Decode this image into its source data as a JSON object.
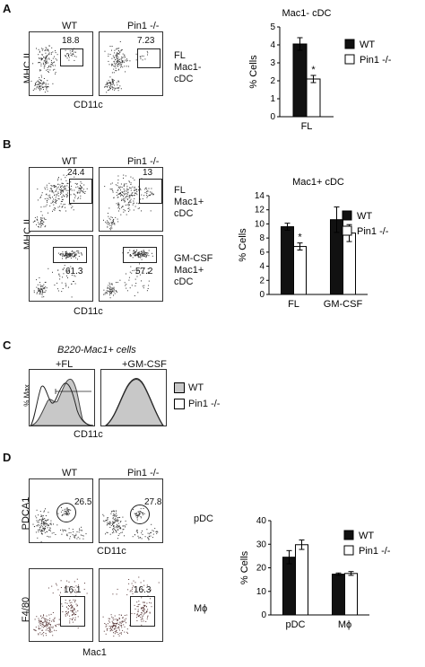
{
  "panels": {
    "A": {
      "letter": "A",
      "wt": "WT",
      "ko": "Pin1 -/-",
      "wt_pct": "18.8",
      "ko_pct": "7.23",
      "side1": "FL",
      "side2": "Mac1-",
      "side3": "cDC",
      "ylab": "MHC II",
      "xlab": "CD11c"
    },
    "B": {
      "letter": "B",
      "wt": "WT",
      "ko": "Pin1 -/-",
      "r1_wt": "24.4",
      "r1_ko": "13",
      "r1_side1": "FL",
      "r1_side2": "Mac1+",
      "r1_side3": "cDC",
      "r2_wt": "61.3",
      "r2_ko": "57.2",
      "r2_side1": "GM-CSF",
      "r2_side2": "Mac1+",
      "r2_side3": "cDC",
      "ylab": "MHC II",
      "xlab": "CD11c"
    },
    "C": {
      "letter": "C",
      "subtitle": "B220-Mac1+ cells",
      "fl": "+FL",
      "gm": "+GM-CSF",
      "ylab": "% Max",
      "xlab": "CD11c",
      "legend_wt": "WT",
      "legend_ko": "Pin1 -/-"
    },
    "D": {
      "letter": "D",
      "wt": "WT",
      "ko": "Pin1 -/-",
      "r1_wt": "26.5",
      "r1_ko": "27.8",
      "r1_side": "pDC",
      "r1_ylab": "PDCA1",
      "r1_xlab": "CD11c",
      "r2_wt": "16.1",
      "r2_ko": "16.3",
      "r2_side": "Mϕ",
      "r2_ylab": "F4/80",
      "r2_xlab": "Mac1"
    }
  },
  "legend": {
    "wt": "WT",
    "ko": "Pin1 -/-"
  },
  "chart_data": [
    {
      "type": "bar",
      "title": "Mac1- cDC",
      "ylabel": "% Cells",
      "ylim": [
        0,
        5
      ],
      "yticks": [
        "0",
        "1",
        "2",
        "3",
        "4",
        "5"
      ],
      "categories": [
        "FL"
      ],
      "series": [
        {
          "name": "WT",
          "values": [
            4.05
          ],
          "errors": [
            0.35
          ]
        },
        {
          "name": "Pin1 -/-",
          "values": [
            2.1
          ],
          "errors": [
            0.2
          ]
        }
      ],
      "annotations": [
        "*"
      ]
    },
    {
      "type": "bar",
      "title": "Mac1+ cDC",
      "ylabel": "% Cells",
      "ylim": [
        0,
        14
      ],
      "yticks": [
        "0",
        "2",
        "4",
        "6",
        "8",
        "10",
        "12",
        "14"
      ],
      "categories": [
        "FL",
        "GM-CSF"
      ],
      "series": [
        {
          "name": "WT",
          "values": [
            9.6,
            10.6
          ],
          "errors": [
            0.5,
            1.8
          ]
        },
        {
          "name": "Pin1 -/-",
          "values": [
            6.8,
            8.7
          ],
          "errors": [
            0.5,
            1.2
          ]
        }
      ],
      "annotations": [
        "*"
      ]
    },
    {
      "type": "bar",
      "title": "",
      "ylabel": "% Cells",
      "ylim": [
        0,
        40
      ],
      "yticks": [
        "0",
        "10",
        "20",
        "30",
        "40"
      ],
      "categories": [
        "pDC",
        "Mϕ"
      ],
      "series": [
        {
          "name": "WT",
          "values": [
            24.5,
            17.3
          ],
          "errors": [
            2.8,
            0.5
          ]
        },
        {
          "name": "Pin1 -/-",
          "values": [
            29.8,
            17.6
          ],
          "errors": [
            2.0,
            0.8
          ]
        }
      ]
    }
  ]
}
